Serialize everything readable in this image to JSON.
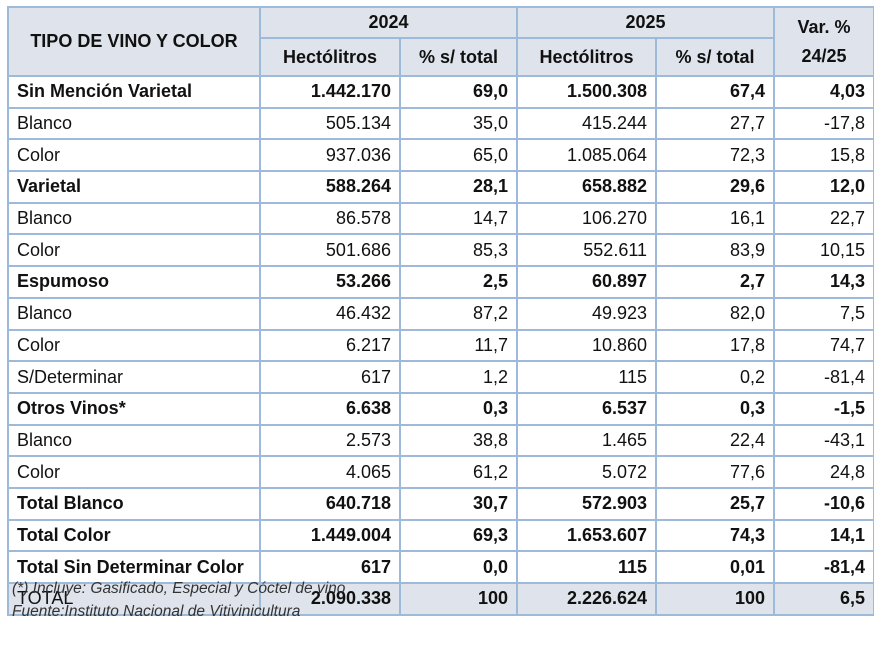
{
  "header": {
    "type_col": "TIPO DE VINO Y COLOR",
    "year1": "2024",
    "year2": "2025",
    "var_line1": "Var. %",
    "var_line2": "24/25",
    "sub_hl": "Hectólitros",
    "sub_pct": "% s/ total"
  },
  "rows": [
    {
      "label": "Sin Mención Varietal",
      "hl24": "1.442.170",
      "pct24": "69,0",
      "hl25": "1.500.308",
      "pct25": "67,4",
      "var": "4,03"
    },
    {
      "label": "Blanco",
      "hl24": "505.134",
      "pct24": "35,0",
      "hl25": "415.244",
      "pct25": "27,7",
      "var": "-17,8"
    },
    {
      "label": "Color",
      "hl24": "937.036",
      "pct24": "65,0",
      "hl25": "1.085.064",
      "pct25": "72,3",
      "var": "15,8"
    },
    {
      "label": "Varietal",
      "hl24": "588.264",
      "pct24": "28,1",
      "hl25": "658.882",
      "pct25": "29,6",
      "var": "12,0"
    },
    {
      "label": "Blanco",
      "hl24": "86.578",
      "pct24": "14,7",
      "hl25": "106.270",
      "pct25": "16,1",
      "var": "22,7"
    },
    {
      "label": "Color",
      "hl24": "501.686",
      "pct24": "85,3",
      "hl25": "552.611",
      "pct25": "83,9",
      "var": "10,15"
    },
    {
      "label": "Espumoso",
      "hl24": "53.266",
      "pct24": "2,5",
      "hl25": "60.897",
      "pct25": "2,7",
      "var": "14,3"
    },
    {
      "label": "Blanco",
      "hl24": "46.432",
      "pct24": "87,2",
      "hl25": "49.923",
      "pct25": "82,0",
      "var": "7,5"
    },
    {
      "label": "Color",
      "hl24": "6.217",
      "pct24": "11,7",
      "hl25": "10.860",
      "pct25": "17,8",
      "var": "74,7"
    },
    {
      "label": "S/Determinar",
      "hl24": "617",
      "pct24": "1,2",
      "hl25": "115",
      "pct25": "0,2",
      "var": "-81,4"
    },
    {
      "label": "Otros Vinos*",
      "hl24": "6.638",
      "pct24": "0,3",
      "hl25": "6.537",
      "pct25": "0,3",
      "var": "-1,5"
    },
    {
      "label": "Blanco",
      "hl24": "2.573",
      "pct24": "38,8",
      "hl25": "1.465",
      "pct25": "22,4",
      "var": "-43,1"
    },
    {
      "label": "Color",
      "hl24": "4.065",
      "pct24": "61,2",
      "hl25": "5.072",
      "pct25": "77,6",
      "var": "24,8"
    },
    {
      "label": "Total Blanco",
      "hl24": "640.718",
      "pct24": "30,7",
      "hl25": "572.903",
      "pct25": "25,7",
      "var": "-10,6"
    },
    {
      "label": "Total Color",
      "hl24": "1.449.004",
      "pct24": "69,3",
      "hl25": "1.653.607",
      "pct25": "74,3",
      "var": "14,1"
    },
    {
      "label": "Total Sin Determinar Color",
      "hl24": "617",
      "pct24": "0,0",
      "hl25": "115",
      "pct25": "0,01",
      "var": "-81,4"
    },
    {
      "label": "TOTAL",
      "hl24": "2.090.338",
      "pct24": "100",
      "hl25": "2.226.624",
      "pct25": "100",
      "var": "6,5"
    }
  ],
  "notes": {
    "footnote": "(*) Incluye: Gasificado, Especial y Cóctel de vino",
    "source": "Fuente:Instituto Nacional de Vitivinicultura"
  },
  "colors": {
    "header_bg": "#dfe4ec",
    "border": "#9dbbd8"
  }
}
